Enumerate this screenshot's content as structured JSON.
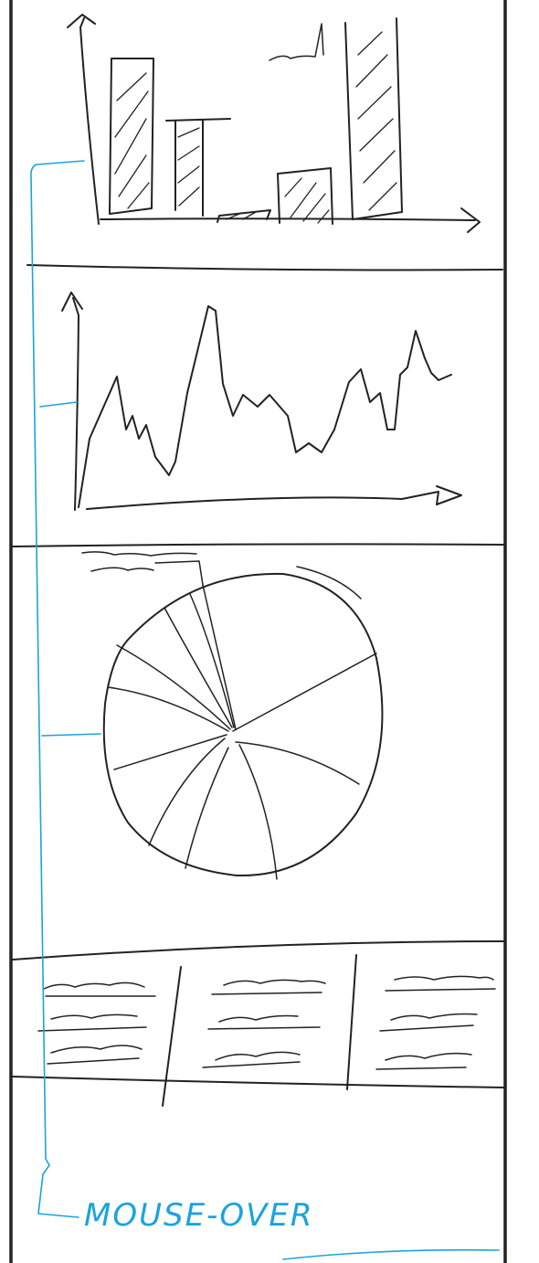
{
  "annotation": {
    "label": "MOUSE-OVER",
    "color": "#1aa3e0"
  },
  "ink_color": "#222222"
}
